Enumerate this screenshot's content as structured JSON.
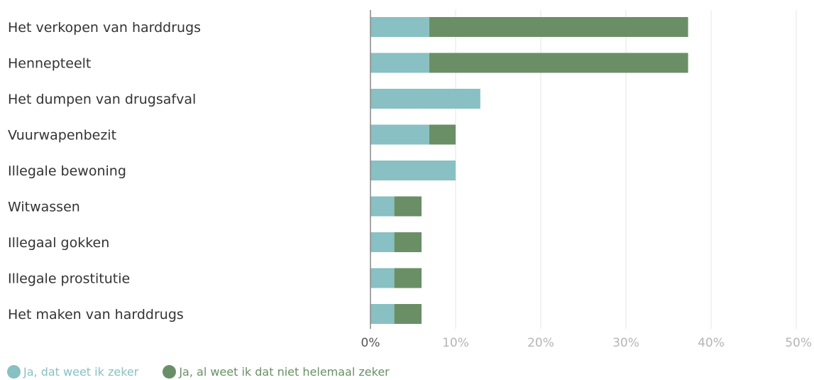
{
  "chart_data": {
    "type": "bar",
    "orientation": "horizontal",
    "stacked": true,
    "title": "",
    "xlabel": "",
    "ylabel": "",
    "categories": [
      "Het verkopen van harddrugs",
      "Hennepteelt",
      "Het dumpen van drugsafval",
      "Vuurwapenbezit",
      "Illegale bewoning",
      "Witwassen",
      "Illegaal gokken",
      "Illegale prostitutie",
      "Het maken van harddrugs"
    ],
    "series": [
      {
        "name": "Ja, dat weet ik zeker",
        "color": "#88c0c3",
        "values": [
          6.9,
          6.9,
          12.9,
          6.9,
          10.0,
          2.8,
          2.8,
          2.8,
          2.8
        ]
      },
      {
        "name": "Ja, al weet ik dat niet helemaal zeker",
        "color": "#6a8f66",
        "values": [
          30.4,
          30.4,
          0,
          3.1,
          0,
          3.2,
          3.2,
          3.2,
          3.2
        ]
      }
    ],
    "xlim": [
      0,
      50
    ],
    "xticks": [
      "0%",
      "10%",
      "20%",
      "30%",
      "40%",
      "50%"
    ],
    "grid": true,
    "legend_position": "bottom-left"
  }
}
